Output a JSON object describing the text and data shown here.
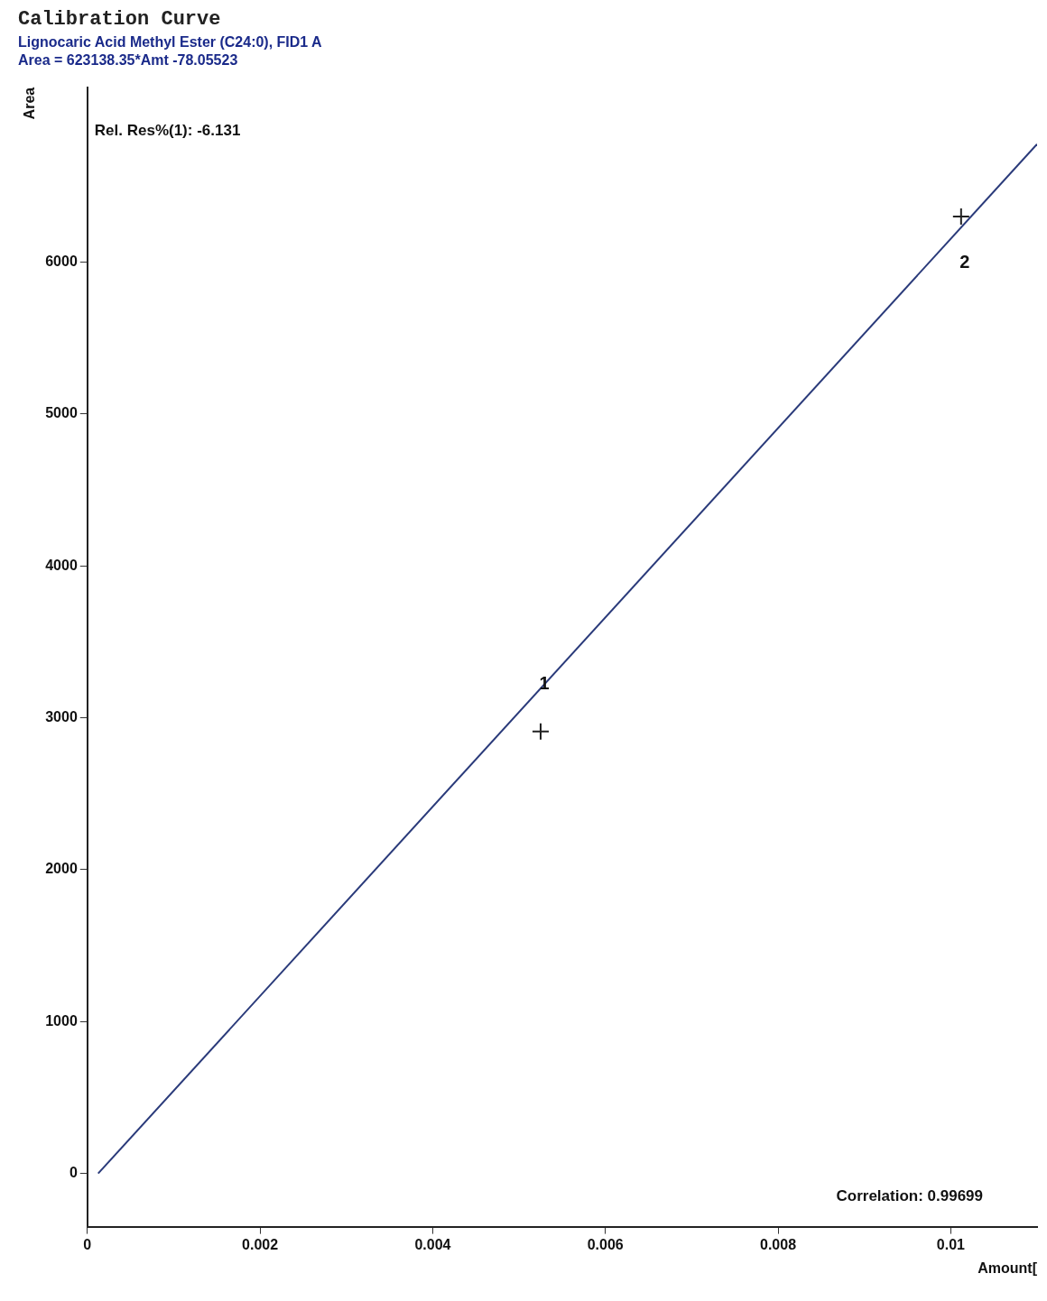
{
  "chart_data": {
    "type": "scatter",
    "title": "Calibration Curve",
    "subtitle": "Lignocaric Acid Methyl Ester (C24:0), FID1 A\nArea = 623138.35*Amt -78.05523",
    "xlabel": "Amount[",
    "ylabel": "Area",
    "xlim": [
      0,
      0.011
    ],
    "xticks": [
      0,
      0.002,
      0.004,
      0.006,
      0.008,
      0.01
    ],
    "ylim": [
      -350,
      7150
    ],
    "yticks": [
      0,
      1000,
      2000,
      3000,
      4000,
      5000,
      6000
    ],
    "grid": false,
    "legend": false,
    "marker": "cross",
    "series": [
      {
        "type": "line",
        "color": "#2a3a7a",
        "x": [
          0.000125,
          0.011
        ],
        "values": [
          0,
          6776
        ],
        "marker": "none"
      },
      {
        "color": "#222222",
        "x": [
          0.00525,
          0.01012
        ],
        "values": [
          2910,
          6300
        ]
      }
    ],
    "annotations": [
      "Rel. Res%(1): -6.131",
      "Correlation: 0.99699",
      {
        "text": "1",
        "x": 0.00525,
        "y": 2910
      },
      {
        "text": "2",
        "x": 0.01012,
        "y": 6300
      }
    ]
  }
}
